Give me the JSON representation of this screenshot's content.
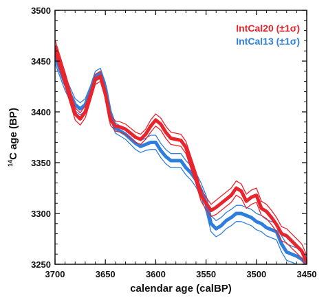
{
  "chart_data": {
    "type": "line",
    "xlabel": "calendar age (calBP)",
    "ylabel_sup": "14",
    "ylabel_rest": "C age (BP)",
    "xlim": [
      3700,
      3450
    ],
    "ylim": [
      3250,
      3500
    ],
    "x_reversed": true,
    "x_ticks": [
      3700,
      3650,
      3600,
      3550,
      3500,
      3450
    ],
    "y_ticks": [
      3250,
      3300,
      3350,
      3400,
      3450,
      3500
    ],
    "x_tick_labels": [
      "3700",
      "3650",
      "3600",
      "3550",
      "3500",
      "3450"
    ],
    "y_tick_labels": [
      "3250",
      "3300",
      "3350",
      "3400",
      "3450",
      "3500"
    ],
    "grid": false,
    "legend_position": "top-right",
    "x": [
      3700,
      3690,
      3680,
      3675,
      3670,
      3665,
      3660,
      3655,
      3650,
      3645,
      3640,
      3635,
      3630,
      3620,
      3615,
      3610,
      3605,
      3600,
      3595,
      3590,
      3585,
      3580,
      3575,
      3570,
      3565,
      3560,
      3555,
      3550,
      3545,
      3540,
      3535,
      3530,
      3525,
      3520,
      3515,
      3510,
      3505,
      3500,
      3495,
      3490,
      3485,
      3480,
      3475,
      3470,
      3465,
      3460,
      3455,
      3450
    ],
    "series": [
      {
        "name": "IntCal20 (±1σ)",
        "color": "#e8242c",
        "values": [
          3464,
          3432,
          3398,
          3393,
          3400,
          3415,
          3432,
          3435,
          3418,
          3392,
          3386,
          3385,
          3383,
          3375,
          3373,
          3378,
          3386,
          3392,
          3388,
          3380,
          3374,
          3373,
          3372,
          3365,
          3350,
          3335,
          3318,
          3310,
          3303,
          3306,
          3310,
          3314,
          3318,
          3325,
          3322,
          3312,
          3316,
          3318,
          3305,
          3302,
          3296,
          3289,
          3280,
          3278,
          3273,
          3268,
          3263,
          3252
        ],
        "sigma": [
          7,
          7,
          6,
          6,
          6,
          5,
          5,
          5,
          5,
          5,
          5,
          5,
          5,
          5,
          5,
          5,
          6,
          6,
          6,
          6,
          6,
          6,
          6,
          6,
          6,
          6,
          6,
          6,
          6,
          7,
          7,
          7,
          7,
          7,
          7,
          7,
          7,
          7,
          7,
          7,
          7,
          7,
          7,
          7,
          7,
          7,
          7,
          7
        ]
      },
      {
        "name": "IntCal13 (±1σ)",
        "color": "#2e7fdd",
        "values": [
          3455,
          3428,
          3407,
          3403,
          3407,
          3420,
          3435,
          3438,
          3424,
          3398,
          3384,
          3381,
          3378,
          3369,
          3366,
          3368,
          3370,
          3370,
          3362,
          3356,
          3352,
          3352,
          3352,
          3345,
          3340,
          3333,
          3323,
          3310,
          3290,
          3285,
          3288,
          3293,
          3296,
          3300,
          3300,
          3298,
          3296,
          3292,
          3290,
          3286,
          3284,
          3282,
          3270,
          3262,
          3260,
          3258,
          3255,
          3250
        ],
        "sigma": [
          7,
          7,
          6,
          6,
          6,
          5,
          5,
          5,
          5,
          5,
          5,
          5,
          5,
          6,
          6,
          6,
          7,
          7,
          7,
          7,
          7,
          7,
          7,
          7,
          7,
          7,
          7,
          8,
          8,
          8,
          8,
          8,
          8,
          8,
          8,
          8,
          8,
          8,
          8,
          8,
          8,
          8,
          8,
          8,
          8,
          8,
          8,
          8
        ]
      }
    ]
  }
}
